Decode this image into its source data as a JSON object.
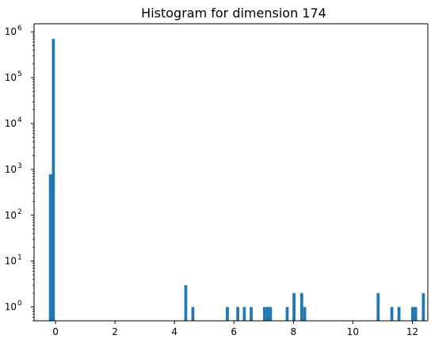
{
  "chart_data": {
    "type": "bar",
    "title": "Histogram for dimension 174",
    "xlabel": "",
    "ylabel": "",
    "yscale": "log",
    "xlim": [
      -0.72,
      12.52
    ],
    "ylim": [
      0.5,
      1500000
    ],
    "grid": false,
    "bar_color": "#1f77b4",
    "bin_width": 0.1,
    "xticks": [
      {
        "value": 0,
        "label": "0"
      },
      {
        "value": 2,
        "label": "2"
      },
      {
        "value": 4,
        "label": "4"
      },
      {
        "value": 6,
        "label": "6"
      },
      {
        "value": 8,
        "label": "8"
      },
      {
        "value": 10,
        "label": "10"
      },
      {
        "value": 12,
        "label": "12"
      }
    ],
    "yticks": [
      {
        "value": 1,
        "base": "10",
        "exp": "0"
      },
      {
        "value": 10,
        "base": "10",
        "exp": "1"
      },
      {
        "value": 100,
        "base": "10",
        "exp": "2"
      },
      {
        "value": 1000,
        "base": "10",
        "exp": "3"
      },
      {
        "value": 10000,
        "base": "10",
        "exp": "4"
      },
      {
        "value": 100000,
        "base": "10",
        "exp": "5"
      },
      {
        "value": 1000000,
        "base": "10",
        "exp": "6"
      }
    ],
    "bins": [
      {
        "x": -0.22,
        "count": 780
      },
      {
        "x": -0.12,
        "count": 700000
      },
      {
        "x": 4.33,
        "count": 3
      },
      {
        "x": 4.57,
        "count": 1
      },
      {
        "x": 5.73,
        "count": 1
      },
      {
        "x": 6.08,
        "count": 1
      },
      {
        "x": 6.3,
        "count": 1
      },
      {
        "x": 6.53,
        "count": 1
      },
      {
        "x": 6.98,
        "count": 1
      },
      {
        "x": 7.08,
        "count": 1
      },
      {
        "x": 7.18,
        "count": 1
      },
      {
        "x": 7.74,
        "count": 1
      },
      {
        "x": 7.97,
        "count": 2
      },
      {
        "x": 8.23,
        "count": 2
      },
      {
        "x": 8.33,
        "count": 1
      },
      {
        "x": 10.8,
        "count": 2
      },
      {
        "x": 11.26,
        "count": 1
      },
      {
        "x": 11.5,
        "count": 1
      },
      {
        "x": 11.96,
        "count": 1
      },
      {
        "x": 12.06,
        "count": 1
      },
      {
        "x": 12.32,
        "count": 2
      }
    ]
  }
}
